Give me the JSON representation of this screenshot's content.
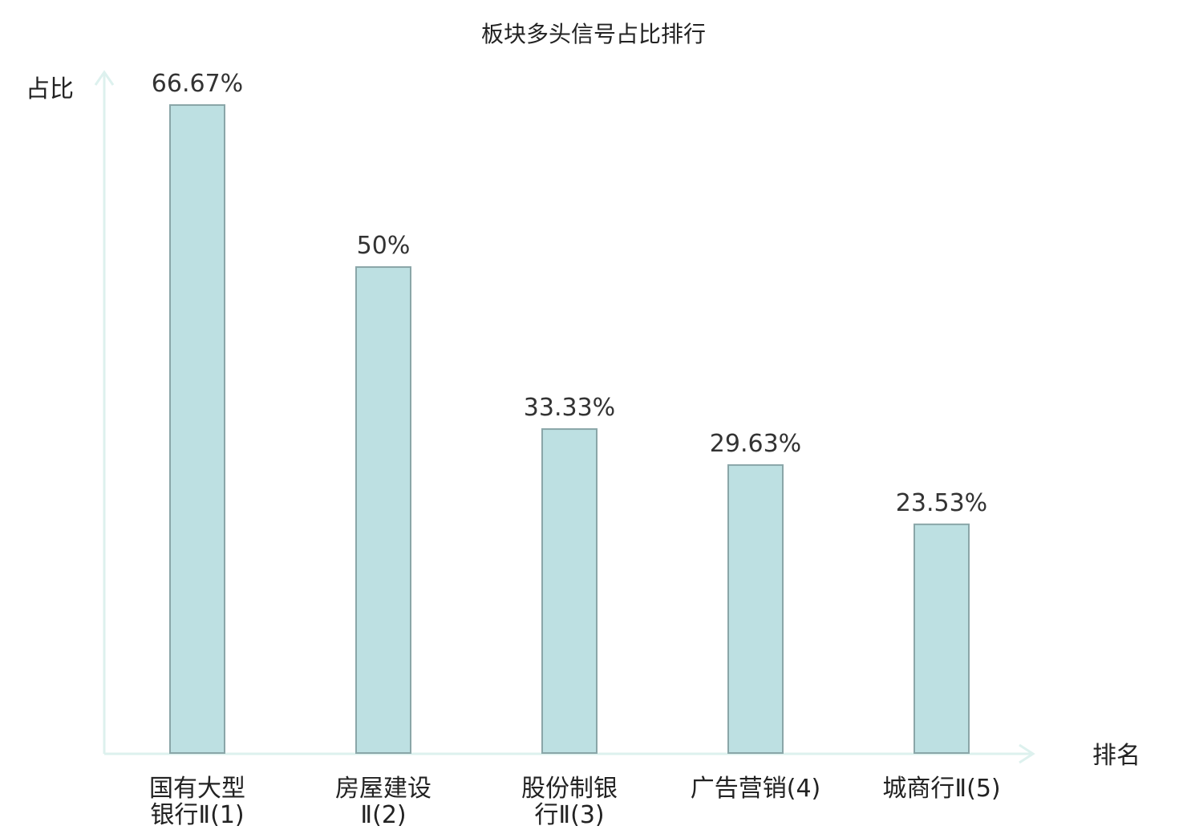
{
  "chart_data": {
    "type": "bar",
    "title": "板块多头信号占比排行",
    "ylabel": "占比",
    "xlabel": "排名",
    "categories": [
      {
        "line1": "国有大型",
        "line2": "银行Ⅱ(1)",
        "highlight": false
      },
      {
        "line1": "房屋建设",
        "line2": "Ⅱ(2)",
        "highlight": false
      },
      {
        "line1": "股份制银",
        "line2": "行Ⅱ(3)",
        "highlight": true
      },
      {
        "line1": "广告营销(4)",
        "line2": "",
        "highlight": false
      },
      {
        "line1": "城商行Ⅱ(5)",
        "line2": "",
        "highlight": false
      }
    ],
    "values": [
      66.67,
      50,
      33.33,
      29.63,
      23.53
    ],
    "value_labels": [
      "66.67%",
      "50%",
      "33.33%",
      "29.63%",
      "23.53%"
    ],
    "ylim": [
      0,
      66.67
    ],
    "grid": false,
    "colors": {
      "bar_fill": "#bde0e2",
      "bar_stroke": "#8aa6a8",
      "axis": "#ddf1ee",
      "highlight_text": "#e0141e",
      "text": "#222222"
    }
  }
}
